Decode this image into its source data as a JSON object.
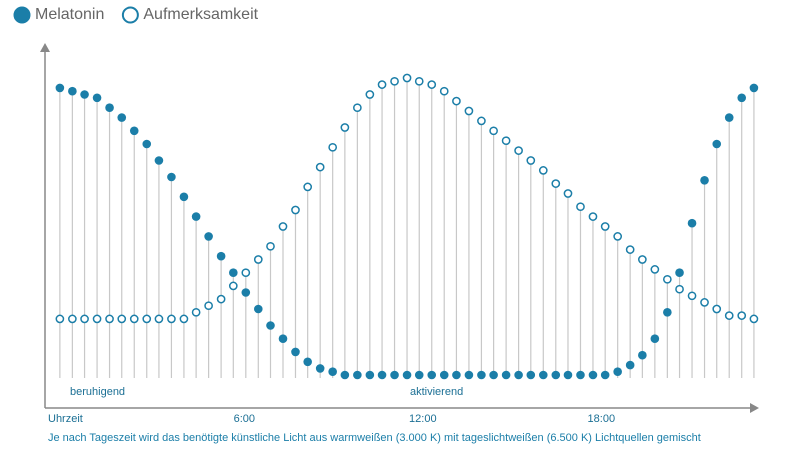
{
  "chart_data": {
    "type": "lollipop",
    "x_label": "Uhrzeit",
    "annotations": [
      "beruhigend",
      "aktivierend"
    ],
    "caption": "Je nach Tageszeit wird das benötigte künstliche Licht aus warmweißen (3.000 K) mit tageslichtweißen (6.500 K) Lichtquellen gemischt",
    "x": [
      -0.2,
      0.22,
      0.63,
      1.05,
      1.47,
      1.88,
      2.3,
      2.72,
      3.13,
      3.55,
      3.97,
      4.38,
      4.8,
      5.22,
      5.63,
      6.05,
      6.47,
      6.88,
      7.3,
      7.72,
      8.13,
      8.55,
      8.97,
      9.38,
      9.8,
      10.22,
      10.63,
      11.05,
      11.47,
      11.88,
      12.3,
      12.72,
      13.13,
      13.55,
      13.97,
      14.38,
      14.8,
      15.22,
      15.63,
      16.05,
      16.47,
      16.88,
      17.3,
      17.72,
      18.13,
      18.55,
      18.97,
      19.38,
      19.8,
      20.22,
      20.63,
      21.05,
      21.47,
      21.88,
      22.3,
      22.72,
      23.13
    ],
    "series": [
      {
        "name": "Melatonin",
        "color": "#1b7ea8",
        "filled": true,
        "values": [
          97,
          96,
          95,
          94,
          91,
          88,
          84,
          80,
          75,
          70,
          64,
          58,
          52,
          46,
          41,
          35,
          30,
          25,
          21,
          17,
          14,
          12,
          11,
          10,
          10,
          10,
          10,
          10,
          10,
          10,
          10,
          10,
          10,
          10,
          10,
          10,
          10,
          10,
          10,
          10,
          10,
          10,
          10,
          10,
          10,
          11,
          13,
          16,
          21,
          29,
          41,
          56,
          69,
          80,
          88,
          94,
          97
        ]
      },
      {
        "name": "Aufmerksamkeit",
        "color": "#1b7ea8",
        "filled": false,
        "values": [
          27,
          27,
          27,
          27,
          27,
          27,
          27,
          27,
          27,
          27,
          27,
          29,
          31,
          33,
          37,
          41,
          45,
          49,
          55,
          60,
          67,
          73,
          79,
          85,
          91,
          95,
          98,
          99,
          100,
          99,
          98,
          96,
          93,
          90,
          87,
          84,
          81,
          78,
          75,
          72,
          68,
          65,
          61,
          58,
          55,
          52,
          48,
          45,
          42,
          39,
          36,
          34,
          32,
          30,
          28,
          28,
          27
        ]
      }
    ],
    "xlim": [
      -0.7,
      23.2
    ],
    "ylim": [
      0,
      100
    ],
    "xticks": [
      {
        "value": 6,
        "label": "6:00"
      },
      {
        "value": 12,
        "label": "12:00"
      },
      {
        "value": 18,
        "label": "18:00"
      }
    ],
    "stem_color": "#c8c8c8"
  }
}
